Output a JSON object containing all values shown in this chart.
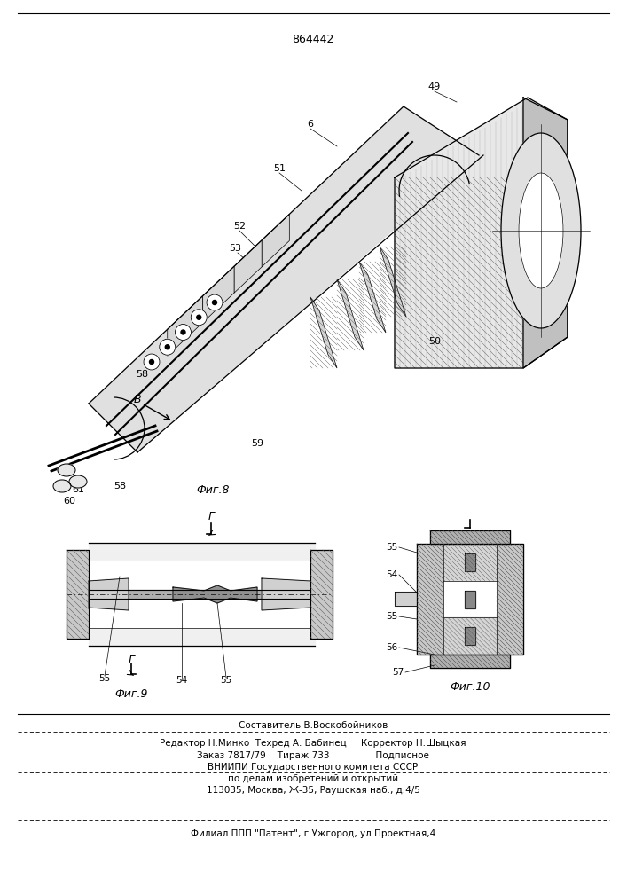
{
  "patent_number": "864442",
  "background_color": "#ffffff",
  "fig_width": 7.07,
  "fig_height": 10.0,
  "footer_line1": "Составитель В.Воскобойников",
  "footer_line2": "Редактор Н.Минко  Техред А. Бабинец     Корректор Н.Шыцкая",
  "footer_line3": "Заказ 7817/79    Тираж 733                Подписное",
  "footer_line4": "ВНИИПИ Государственного комитета СССР",
  "footer_line5": "по делам изобретений и открытий",
  "footer_line6": "113035, Москва, Ж-35, Раушская наб., д.4/5",
  "footer_line7": "Филиал ППП \"Патент\", г.Ужгород, ул.Проектная,4"
}
